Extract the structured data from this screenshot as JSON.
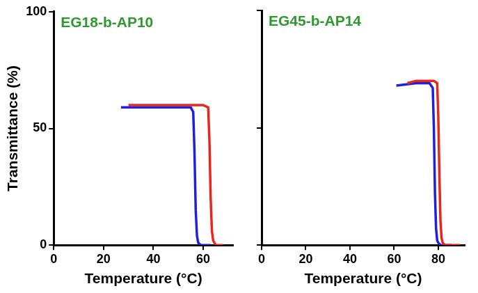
{
  "chart_data": [
    {
      "type": "line",
      "title": "EG18-b-AP10",
      "x_label": "Temperature (°C)",
      "y_label": "Transmittance (%)",
      "xlim": [
        0,
        72
      ],
      "xticks": [
        0,
        20,
        40,
        60
      ],
      "ylim": [
        0,
        100
      ],
      "yticks": [
        0,
        50,
        100
      ],
      "grid": false,
      "series": [
        {
          "color": "#e8261e",
          "x": [
            30,
            40,
            50,
            60,
            62,
            62.5,
            63,
            63.5,
            64,
            65,
            68
          ],
          "values": [
            60,
            60,
            60,
            60,
            59,
            45,
            20,
            6,
            2,
            0,
            0
          ]
        },
        {
          "color": "#1f1fe0",
          "x": [
            27,
            40,
            50,
            55,
            56,
            56.5,
            57,
            57.5,
            58,
            59,
            63
          ],
          "values": [
            59,
            59,
            59,
            59,
            57,
            40,
            15,
            4,
            1,
            0,
            0
          ]
        }
      ]
    },
    {
      "type": "line",
      "title": "EG45-b-AP14",
      "x_label": "Temperature (°C)",
      "xlim": [
        0,
        92
      ],
      "xticks": [
        0,
        20,
        40,
        60,
        80
      ],
      "ylim": [
        0,
        100
      ],
      "yticks": [
        0,
        50,
        100
      ],
      "grid": false,
      "tick_labels": "x",
      "series": [
        {
          "color": "#e8261e",
          "x": [
            66,
            70,
            78,
            79.5,
            80,
            80.5,
            81,
            81.5,
            82,
            83,
            90
          ],
          "values": [
            69,
            70,
            70,
            69,
            55,
            30,
            10,
            3,
            1,
            0,
            0
          ]
        },
        {
          "color": "#1f1fe0",
          "x": [
            61,
            70,
            76,
            77.5,
            78,
            78.5,
            79,
            79.5,
            80,
            81,
            86
          ],
          "values": [
            68,
            69,
            69,
            67,
            50,
            22,
            7,
            2,
            1,
            0,
            0
          ]
        }
      ]
    }
  ]
}
